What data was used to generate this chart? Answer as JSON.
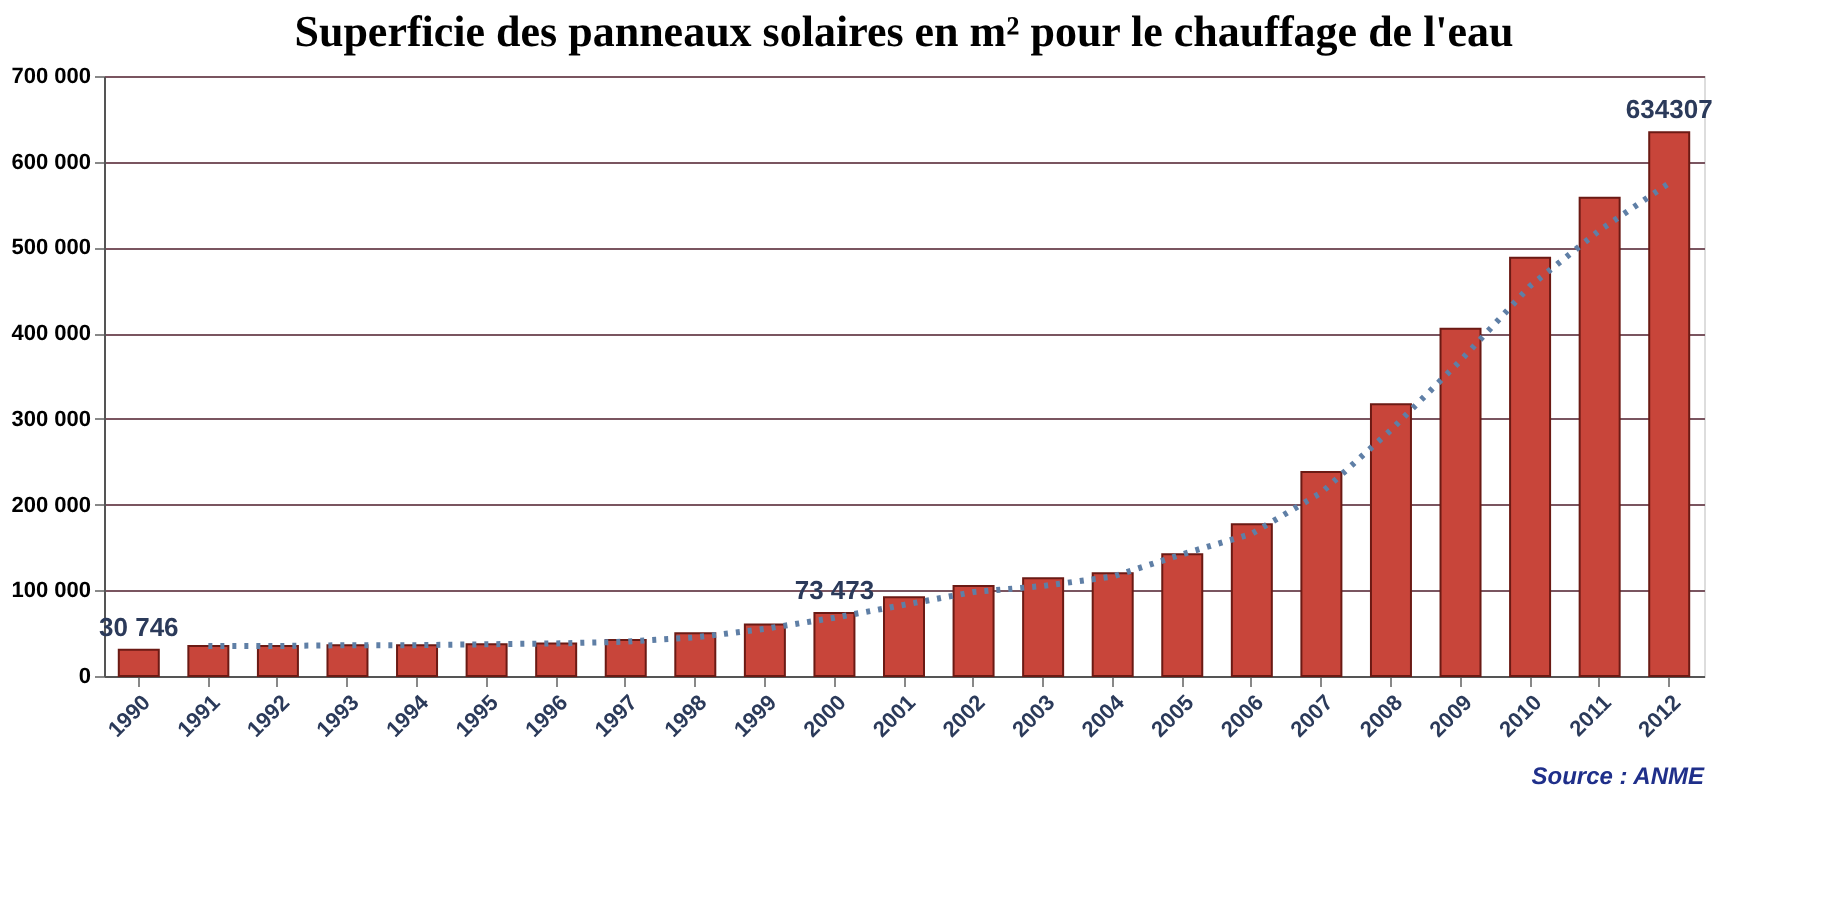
{
  "chart_data": {
    "type": "bar",
    "title": "Superficie des panneaux solaires en m² pour le chauffage de l'eau",
    "categories": [
      "1990",
      "1991",
      "1992",
      "1993",
      "1994",
      "1995",
      "1996",
      "1997",
      "1998",
      "1999",
      "2000",
      "2001",
      "2002",
      "2003",
      "2004",
      "2005",
      "2006",
      "2007",
      "2008",
      "2009",
      "2010",
      "2011",
      "2012"
    ],
    "series": [
      {
        "color": "#c8453a",
        "values": [
          30746,
          35000,
          35000,
          36000,
          36000,
          37000,
          38000,
          42000,
          50000,
          60000,
          73473,
          92000,
          105000,
          114000,
          120000,
          142000,
          177000,
          238000,
          317000,
          405000,
          488000,
          558000,
          634307
        ],
        "value_labels": [
          "30 746",
          null,
          null,
          null,
          null,
          null,
          null,
          null,
          null,
          null,
          "73 473",
          null,
          null,
          null,
          null,
          null,
          null,
          null,
          null,
          null,
          null,
          null,
          "634307"
        ]
      },
      {
        "type": "line",
        "color": "#5f7fa6",
        "line_style": "dotted",
        "values": [
          null,
          35000,
          35000,
          36000,
          36000,
          37000,
          38000,
          40000,
          45000,
          55000,
          68000,
          83000,
          98000,
          105000,
          116000,
          142000,
          166000,
          214000,
          287000,
          368000,
          455000,
          520000,
          575000
        ]
      }
    ],
    "ylim": [
      0,
      700000
    ],
    "yticks": [
      0,
      {
        "value": 100000,
        "label": "100 000"
      },
      {
        "value": 200000,
        "label": "200 000"
      },
      {
        "value": 300000,
        "label": "300 000"
      },
      {
        "value": 400000,
        "label": "400 000"
      },
      {
        "value": 500000,
        "label": "500 000"
      },
      {
        "value": 600000,
        "label": "600 000"
      },
      {
        "value": 700000,
        "label": "700 000"
      }
    ],
    "grid": "y",
    "annotations": [
      "Source : ANME"
    ]
  }
}
